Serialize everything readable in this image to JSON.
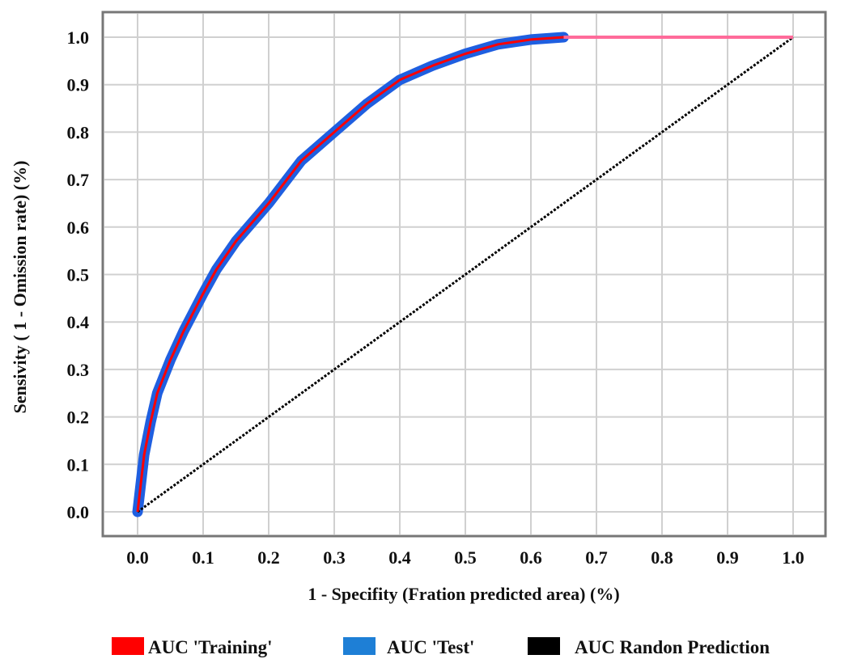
{
  "chart_data": {
    "type": "line",
    "title": "",
    "xlabel": "1 - Specifity (Fration predicted area) (%)",
    "ylabel": "Sensivity ( 1 - Omission rate) (%)",
    "xlim": [
      0.0,
      1.0
    ],
    "ylim": [
      0.0,
      1.0
    ],
    "grid": true,
    "legend_position": "bottom",
    "x_ticks": [
      "0.0",
      "0.1",
      "0.2",
      "0.3",
      "0.4",
      "0.5",
      "0.6",
      "0.7",
      "0.8",
      "0.9",
      "1.0"
    ],
    "y_ticks": [
      "0.0",
      "0.1",
      "0.2",
      "0.3",
      "0.4",
      "0.5",
      "0.6",
      "0.7",
      "0.8",
      "0.9",
      "1.0"
    ],
    "series": [
      {
        "name": "AUC 'Training'",
        "color": "#ff0000",
        "x": [
          0.0,
          0.01,
          0.02,
          0.03,
          0.05,
          0.07,
          0.1,
          0.12,
          0.15,
          0.2,
          0.25,
          0.3,
          0.35,
          0.4,
          0.45,
          0.5,
          0.55,
          0.6,
          0.65,
          0.7,
          0.8,
          0.9,
          1.0
        ],
        "y": [
          0.0,
          0.12,
          0.19,
          0.25,
          0.32,
          0.38,
          0.46,
          0.51,
          0.57,
          0.65,
          0.74,
          0.8,
          0.86,
          0.91,
          0.94,
          0.965,
          0.985,
          0.995,
          1.0,
          1.0,
          1.0,
          1.0,
          1.0
        ]
      },
      {
        "name": "AUC 'Test'",
        "color": "#1f5fe0",
        "x": [
          0.0,
          0.01,
          0.02,
          0.03,
          0.05,
          0.07,
          0.1,
          0.12,
          0.15,
          0.2,
          0.25,
          0.3,
          0.35,
          0.4,
          0.45,
          0.5,
          0.55,
          0.6,
          0.65
        ],
        "y": [
          0.0,
          0.12,
          0.19,
          0.25,
          0.32,
          0.38,
          0.46,
          0.51,
          0.57,
          0.65,
          0.74,
          0.8,
          0.86,
          0.91,
          0.94,
          0.965,
          0.985,
          0.995,
          1.0
        ]
      },
      {
        "name": "AUC Randon Prediction",
        "color": "#000000",
        "x": [
          0.0,
          1.0
        ],
        "y": [
          0.0,
          1.0
        ]
      }
    ]
  },
  "legend": {
    "items": [
      {
        "label": "AUC 'Training'",
        "color": "#ff0000"
      },
      {
        "label": "AUC 'Test'",
        "color": "#1e7fd6"
      },
      {
        "label": "AUC Randon Prediction",
        "color": "#000000"
      }
    ]
  }
}
